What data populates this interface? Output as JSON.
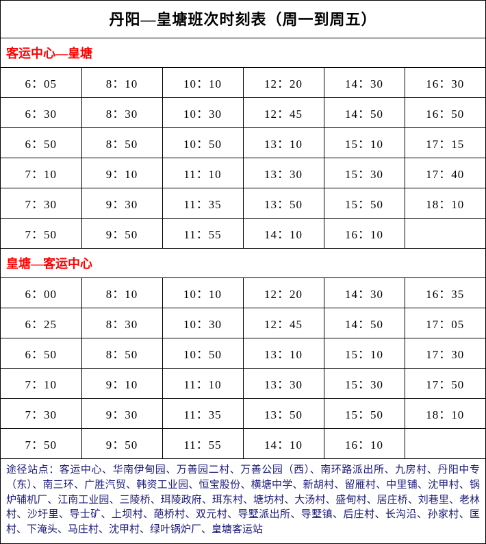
{
  "title": "丹阳—皇塘班次时刻表（周一到周五）",
  "section1": {
    "header": "客运中心—皇塘",
    "rows": [
      [
        "6：05",
        "8：10",
        "10：10",
        "12：20",
        "14：30",
        "16：30"
      ],
      [
        "6：30",
        "8：30",
        "10：30",
        "12：45",
        "14：50",
        "16：50"
      ],
      [
        "6：50",
        "8：50",
        "10：50",
        "13：10",
        "15：10",
        "17：15"
      ],
      [
        "7：10",
        "9：10",
        "11：10",
        "13：30",
        "15：30",
        "17：40"
      ],
      [
        "7：30",
        "9：30",
        "11：35",
        "13：50",
        "15：50",
        "18：10"
      ],
      [
        "7：50",
        "9：50",
        "11：55",
        "14：10",
        "16：10",
        ""
      ]
    ]
  },
  "section2": {
    "header": "皇塘—客运中心",
    "rows": [
      [
        "6：00",
        "8：10",
        "10：10",
        "12：20",
        "14：30",
        "16：35"
      ],
      [
        "6：25",
        "8：30",
        "10：30",
        "12：45",
        "14：50",
        "17：05"
      ],
      [
        "6：50",
        "8：50",
        "10：50",
        "13：10",
        "15：10",
        "17：30"
      ],
      [
        "7：10",
        "9：10",
        "11：10",
        "13：30",
        "15：30",
        "17：50"
      ],
      [
        "7：30",
        "9：30",
        "11：35",
        "13：50",
        "15：50",
        "18：10"
      ],
      [
        "7：50",
        "9：50",
        "11：55",
        "14：10",
        "16：10",
        ""
      ]
    ]
  },
  "footnote": "途径站点：客运中心、华南伊甸园、万善园二村、万善公园（西）、南环路派出所、九房村、丹阳中专（东）、南三环、广胜汽贸、韩资工业园、恒宝股份、横塘中学、新胡村、留雁村、中里铺、沈甲村、锅炉辅机厂、江南工业园、三陵桥、珥陵政府、珥东村、塘坊村、大汤村、盛甸村、居庄桥、刘巷里、老林村、沙圩里、导士矿、上坝村、葩桥村、双元村、导墅派出所、导墅镇、后庄村、长沟沿、孙家村、匡村、下淹头、马庄村、沈甲村、绿叶锅炉厂、皇塘客运站",
  "colors": {
    "header_red": "#ff0000",
    "footnote_blue": "#1a1a7a",
    "border": "#000000",
    "background": "#ffffff"
  }
}
